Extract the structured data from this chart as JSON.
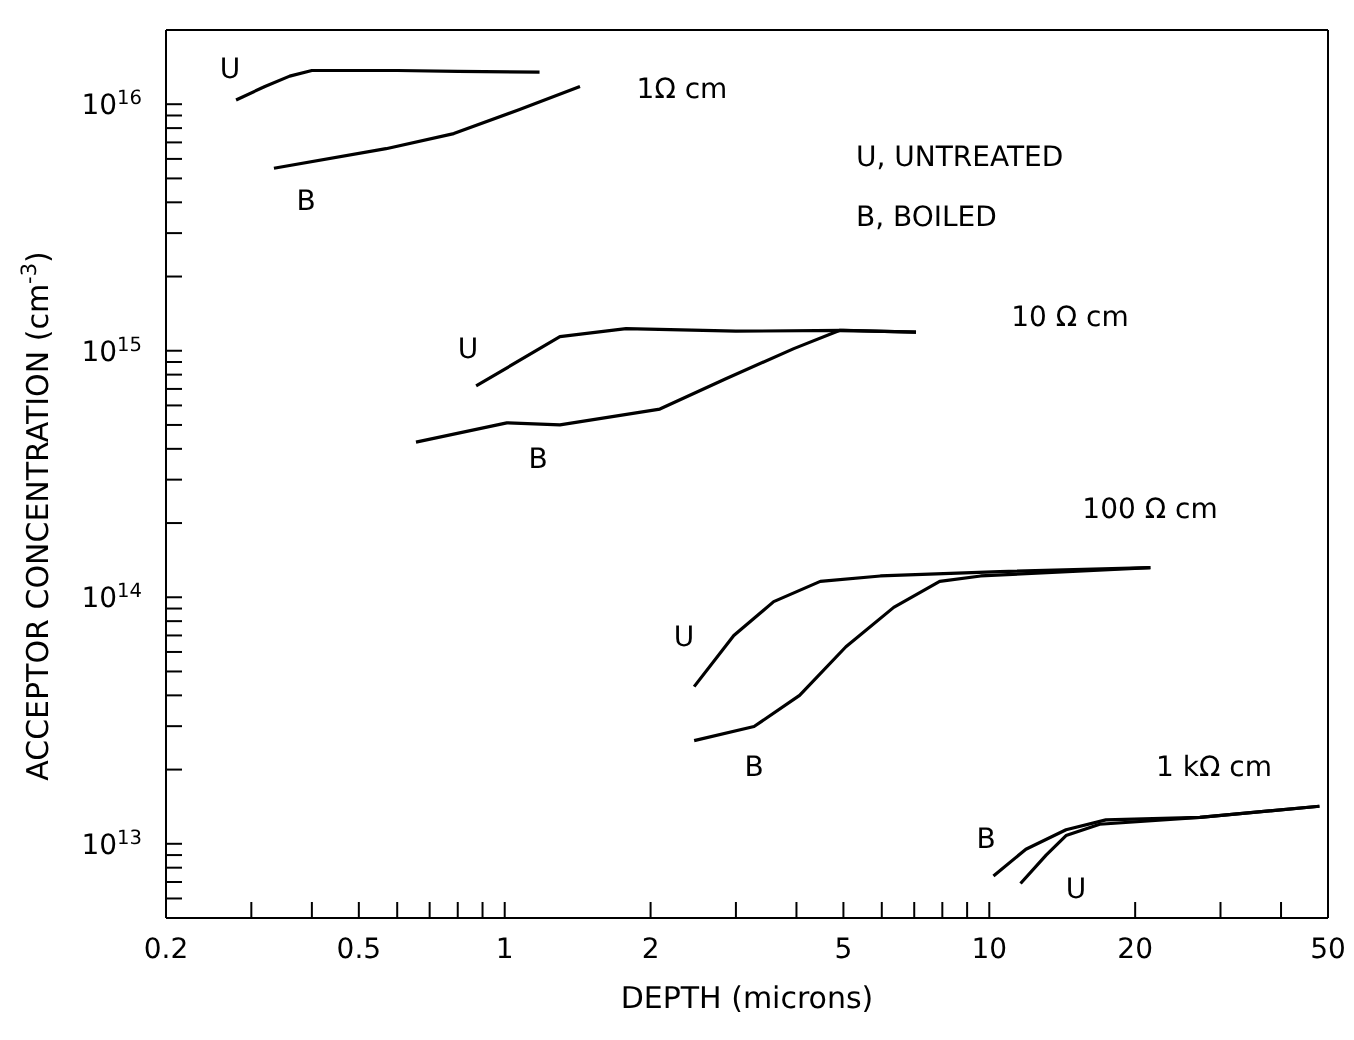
{
  "chart_data": {
    "type": "line",
    "xlabel": "DEPTH (microns)",
    "ylabel": "ACCEPTOR CONCENTRATION  (cm$^{-3}$)",
    "log": "xy",
    "grid": false,
    "marker": "none",
    "line_style": "solid",
    "xlim": [
      0.2,
      50
    ],
    "ylim": [
      5000000000000.0,
      2e+16
    ],
    "xticks": [
      0.2,
      {
        "value": 0.3,
        "label": null
      },
      {
        "value": 0.4,
        "label": null
      },
      0.5,
      {
        "value": 0.6,
        "label": null
      },
      {
        "value": 0.7,
        "label": null
      },
      {
        "value": 0.8,
        "label": null
      },
      {
        "value": 0.9,
        "label": null
      },
      1,
      2,
      {
        "value": 3,
        "label": null
      },
      {
        "value": 4,
        "label": null
      },
      5,
      {
        "value": 6,
        "label": null
      },
      {
        "value": 7,
        "label": null
      },
      {
        "value": 8,
        "label": null
      },
      {
        "value": 9,
        "label": null
      },
      10,
      20,
      {
        "value": 30,
        "label": null
      },
      {
        "value": 40,
        "label": null
      },
      50
    ],
    "yticks": [
      {
        "value": 6000000000000.0,
        "label": null
      },
      {
        "value": 7000000000000.0,
        "label": null
      },
      {
        "value": 8000000000000.0,
        "label": null
      },
      {
        "value": 9000000000000.0,
        "label": null
      },
      {
        "value": 10000000000000.0,
        "label": "10$^{13}$"
      },
      {
        "value": 20000000000000.0,
        "label": null
      },
      {
        "value": 30000000000000.0,
        "label": null
      },
      {
        "value": 40000000000000.0,
        "label": null
      },
      {
        "value": 50000000000000.0,
        "label": null
      },
      {
        "value": 60000000000000.0,
        "label": null
      },
      {
        "value": 70000000000000.0,
        "label": null
      },
      {
        "value": 80000000000000.0,
        "label": null
      },
      {
        "value": 90000000000000.0,
        "label": null
      },
      {
        "value": 100000000000000.0,
        "label": "10$^{14}$"
      },
      {
        "value": 200000000000000.0,
        "label": null
      },
      {
        "value": 300000000000000.0,
        "label": null
      },
      {
        "value": 400000000000000.0,
        "label": null
      },
      {
        "value": 500000000000000.0,
        "label": null
      },
      {
        "value": 600000000000000.0,
        "label": null
      },
      {
        "value": 700000000000000.0,
        "label": null
      },
      {
        "value": 800000000000000.0,
        "label": null
      },
      {
        "value": 900000000000000.0,
        "label": null
      },
      {
        "value": 1000000000000000.0,
        "label": "10$^{15}$"
      },
      {
        "value": 2000000000000000.0,
        "label": null
      },
      {
        "value": 3000000000000000.0,
        "label": null
      },
      {
        "value": 4000000000000000.0,
        "label": null
      },
      {
        "value": 5000000000000000.0,
        "label": null
      },
      {
        "value": 6000000000000000.0,
        "label": null
      },
      {
        "value": 7000000000000000.0,
        "label": null
      },
      {
        "value": 8000000000000000.0,
        "label": null
      },
      {
        "value": 9000000000000000.0,
        "label": null
      },
      {
        "value": 1e+16,
        "label": "10$^{16}$"
      }
    ],
    "series": [
      {
        "color": "#000000",
        "x": [
          0.279,
          0.32,
          0.36,
          0.4,
          0.6,
          0.8,
          1.18
        ],
        "values": [
          1.04e+16,
          1.18e+16,
          1.3e+16,
          1.37e+16,
          1.37e+16,
          1.36e+16,
          1.35e+16
        ]
      },
      {
        "color": "#000000",
        "x": [
          0.334,
          0.569,
          0.785,
          1.07,
          1.43
        ],
        "values": [
          5500000000000000.0,
          6600000000000000.0,
          7600000000000000.0,
          9500000000000000.0,
          1.18e+16
        ]
      },
      {
        "color": "#000000",
        "x": [
          0.873,
          1.3,
          1.78,
          3,
          5,
          7.06
        ],
        "values": [
          720000000000000.0,
          1140000000000000.0,
          1230000000000000.0,
          1200000000000000.0,
          1210000000000000.0,
          1190000000000000.0
        ]
      },
      {
        "color": "#000000",
        "x": [
          0.656,
          1.01,
          1.3,
          2.09,
          2.86,
          3.95,
          4.92,
          7.06
        ],
        "values": [
          426000000000000.0,
          510000000000000.0,
          500000000000000.0,
          580000000000000.0,
          770000000000000.0,
          1020000000000000.0,
          1210000000000000.0,
          1190000000000000.0
        ]
      },
      {
        "color": "#000000",
        "x": [
          2.46,
          2.97,
          3.59,
          4.48,
          5.96,
          10.5,
          21.5
        ],
        "values": [
          43400000000000.0,
          70000000000000.0,
          96000000000000.0,
          116000000000000.0,
          122000000000000.0,
          127000000000000.0,
          132000000000000.0
        ]
      },
      {
        "color": "#000000",
        "x": [
          2.46,
          3.27,
          4.06,
          5.06,
          6.35,
          7.9,
          9.6,
          21.5
        ],
        "values": [
          26200000000000.0,
          29900000000000.0,
          40000000000000.0,
          63000000000000.0,
          91000000000000.0,
          116000000000000.0,
          122000000000000.0,
          132000000000000.0
        ]
      },
      {
        "color": "#000000",
        "x": [
          10.2,
          11.9,
          14.4,
          17.4,
          27.2,
          48
        ],
        "values": [
          7400000000000.0,
          9500000000000.0,
          11400000000000.0,
          12500000000000.0,
          12800000000000.0,
          14200000000000.0
        ]
      },
      {
        "color": "#000000",
        "x": [
          11.6,
          13.1,
          14.4,
          16.9,
          27.2,
          48
        ],
        "values": [
          6900000000000.0,
          9000000000000.0,
          10800000000000.0,
          12000000000000.0,
          12800000000000.0,
          14200000000000.0
        ]
      }
    ],
    "annotations": [
      "U",
      "B",
      "1Ω cm",
      "U",
      "B",
      "10 Ω cm",
      "U",
      "B",
      "100 Ω cm",
      "B",
      "U",
      "1 kΩ cm",
      "U, UNTREATED",
      "B, BOILED"
    ]
  }
}
